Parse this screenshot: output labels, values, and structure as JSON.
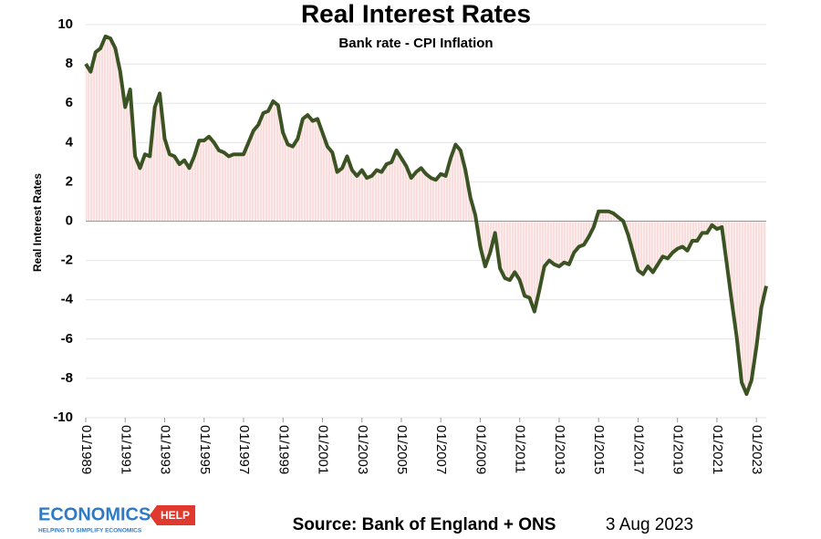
{
  "chart_data": {
    "type": "line",
    "title": "Real Interest Rates",
    "subtitle": "Bank rate - CPI Inflation",
    "y_label": "Real Interest Rates",
    "source": "Source: Bank of England + ONS",
    "date": "3 Aug 2023",
    "logo": {
      "left": "ECONOMICS",
      "right": "HELP",
      "tagline": "HELPING TO SIMPLIFY ECONOMICS"
    },
    "ylim": [
      -10,
      10
    ],
    "yticks": [
      -10,
      -8,
      -6,
      -4,
      -2,
      0,
      2,
      4,
      6,
      8,
      10
    ],
    "xlim": [
      "1989-01",
      "2023-07"
    ],
    "xticks": [
      {
        "value": "1989-01",
        "label": "01/1989"
      },
      {
        "value": "1991-01",
        "label": "01/1991"
      },
      {
        "value": "1993-01",
        "label": "01/1993"
      },
      {
        "value": "1995-01",
        "label": "01/1995"
      },
      {
        "value": "1997-01",
        "label": "01/1997"
      },
      {
        "value": "1999-01",
        "label": "01/1999"
      },
      {
        "value": "2001-01",
        "label": "01/2001"
      },
      {
        "value": "2003-01",
        "label": "01/2003"
      },
      {
        "value": "2005-01",
        "label": "01/2005"
      },
      {
        "value": "2007-01",
        "label": "01/2007"
      },
      {
        "value": "2009-01",
        "label": "01/2009"
      },
      {
        "value": "2011-01",
        "label": "01/2011"
      },
      {
        "value": "2013-01",
        "label": "01/2013"
      },
      {
        "value": "2015-01",
        "label": "01/2015"
      },
      {
        "value": "2017-01",
        "label": "01/2017"
      },
      {
        "value": "2019-01",
        "label": "01/2019"
      },
      {
        "value": "2021-01",
        "label": "01/2021"
      },
      {
        "value": "2023-01",
        "label": "01/2023"
      }
    ],
    "grid": true,
    "x": [
      "1989-01",
      "1989-04",
      "1989-07",
      "1989-10",
      "1990-01",
      "1990-04",
      "1990-07",
      "1990-10",
      "1991-01",
      "1991-04",
      "1991-07",
      "1991-10",
      "1992-01",
      "1992-04",
      "1992-07",
      "1992-10",
      "1993-01",
      "1993-04",
      "1993-07",
      "1993-10",
      "1994-01",
      "1994-04",
      "1994-07",
      "1994-10",
      "1995-01",
      "1995-04",
      "1995-07",
      "1995-10",
      "1996-01",
      "1996-04",
      "1996-07",
      "1996-10",
      "1997-01",
      "1997-04",
      "1997-07",
      "1997-10",
      "1998-01",
      "1998-04",
      "1998-07",
      "1998-10",
      "1999-01",
      "1999-04",
      "1999-07",
      "1999-10",
      "2000-01",
      "2000-04",
      "2000-07",
      "2000-10",
      "2001-01",
      "2001-04",
      "2001-07",
      "2001-10",
      "2002-01",
      "2002-04",
      "2002-07",
      "2002-10",
      "2003-01",
      "2003-04",
      "2003-07",
      "2003-10",
      "2004-01",
      "2004-04",
      "2004-07",
      "2004-10",
      "2005-01",
      "2005-04",
      "2005-07",
      "2005-10",
      "2006-01",
      "2006-04",
      "2006-07",
      "2006-10",
      "2007-01",
      "2007-04",
      "2007-07",
      "2007-10",
      "2008-01",
      "2008-04",
      "2008-07",
      "2008-10",
      "2009-01",
      "2009-04",
      "2009-07",
      "2009-10",
      "2010-01",
      "2010-04",
      "2010-07",
      "2010-10",
      "2011-01",
      "2011-04",
      "2011-07",
      "2011-10",
      "2012-01",
      "2012-04",
      "2012-07",
      "2012-10",
      "2013-01",
      "2013-04",
      "2013-07",
      "2013-10",
      "2014-01",
      "2014-04",
      "2014-07",
      "2014-10",
      "2015-01",
      "2015-04",
      "2015-07",
      "2015-10",
      "2016-01",
      "2016-04",
      "2016-07",
      "2016-10",
      "2017-01",
      "2017-04",
      "2017-07",
      "2017-10",
      "2018-01",
      "2018-04",
      "2018-07",
      "2018-10",
      "2019-01",
      "2019-04",
      "2019-07",
      "2019-10",
      "2020-01",
      "2020-04",
      "2020-07",
      "2020-10",
      "2021-01",
      "2021-04",
      "2021-07",
      "2021-10",
      "2022-01",
      "2022-04",
      "2022-07",
      "2022-10",
      "2023-01",
      "2023-04",
      "2023-07"
    ],
    "series": [
      {
        "name": "Real Interest Rates",
        "color": "#3b5323",
        "fill": "#fbe3e3",
        "values": [
          8.0,
          7.6,
          8.6,
          8.8,
          9.4,
          9.3,
          8.8,
          7.6,
          5.8,
          6.7,
          3.3,
          2.7,
          3.4,
          3.3,
          5.8,
          6.5,
          4.2,
          3.4,
          3.3,
          2.9,
          3.1,
          2.7,
          3.3,
          4.1,
          4.1,
          4.3,
          4.0,
          3.6,
          3.5,
          3.3,
          3.4,
          3.4,
          3.4,
          4.0,
          4.6,
          4.9,
          5.5,
          5.6,
          6.1,
          5.9,
          4.5,
          3.9,
          3.8,
          4.2,
          5.2,
          5.4,
          5.1,
          5.2,
          4.5,
          3.8,
          3.5,
          2.5,
          2.7,
          3.3,
          2.6,
          2.3,
          2.6,
          2.2,
          2.3,
          2.6,
          2.5,
          2.9,
          3.0,
          3.6,
          3.2,
          2.8,
          2.2,
          2.5,
          2.7,
          2.4,
          2.2,
          2.1,
          2.4,
          2.3,
          3.2,
          3.9,
          3.6,
          2.6,
          1.2,
          0.3,
          -1.3,
          -2.3,
          -1.6,
          -0.6,
          -2.4,
          -2.9,
          -3.0,
          -2.6,
          -3.0,
          -3.8,
          -3.9,
          -4.6,
          -3.5,
          -2.3,
          -2.0,
          -2.2,
          -2.3,
          -2.1,
          -2.2,
          -1.6,
          -1.3,
          -1.2,
          -0.8,
          -0.3,
          0.5,
          0.5,
          0.5,
          0.4,
          0.2,
          0.0,
          -0.7,
          -1.6,
          -2.5,
          -2.7,
          -2.3,
          -2.6,
          -2.2,
          -1.8,
          -1.9,
          -1.6,
          -1.4,
          -1.3,
          -1.5,
          -1.0,
          -1.0,
          -0.6,
          -0.6,
          -0.2,
          -0.4,
          -0.3,
          -2.2,
          -4.1,
          -5.9,
          -8.2,
          -8.8,
          -8.1,
          -6.4,
          -4.4,
          -3.3
        ]
      }
    ]
  }
}
